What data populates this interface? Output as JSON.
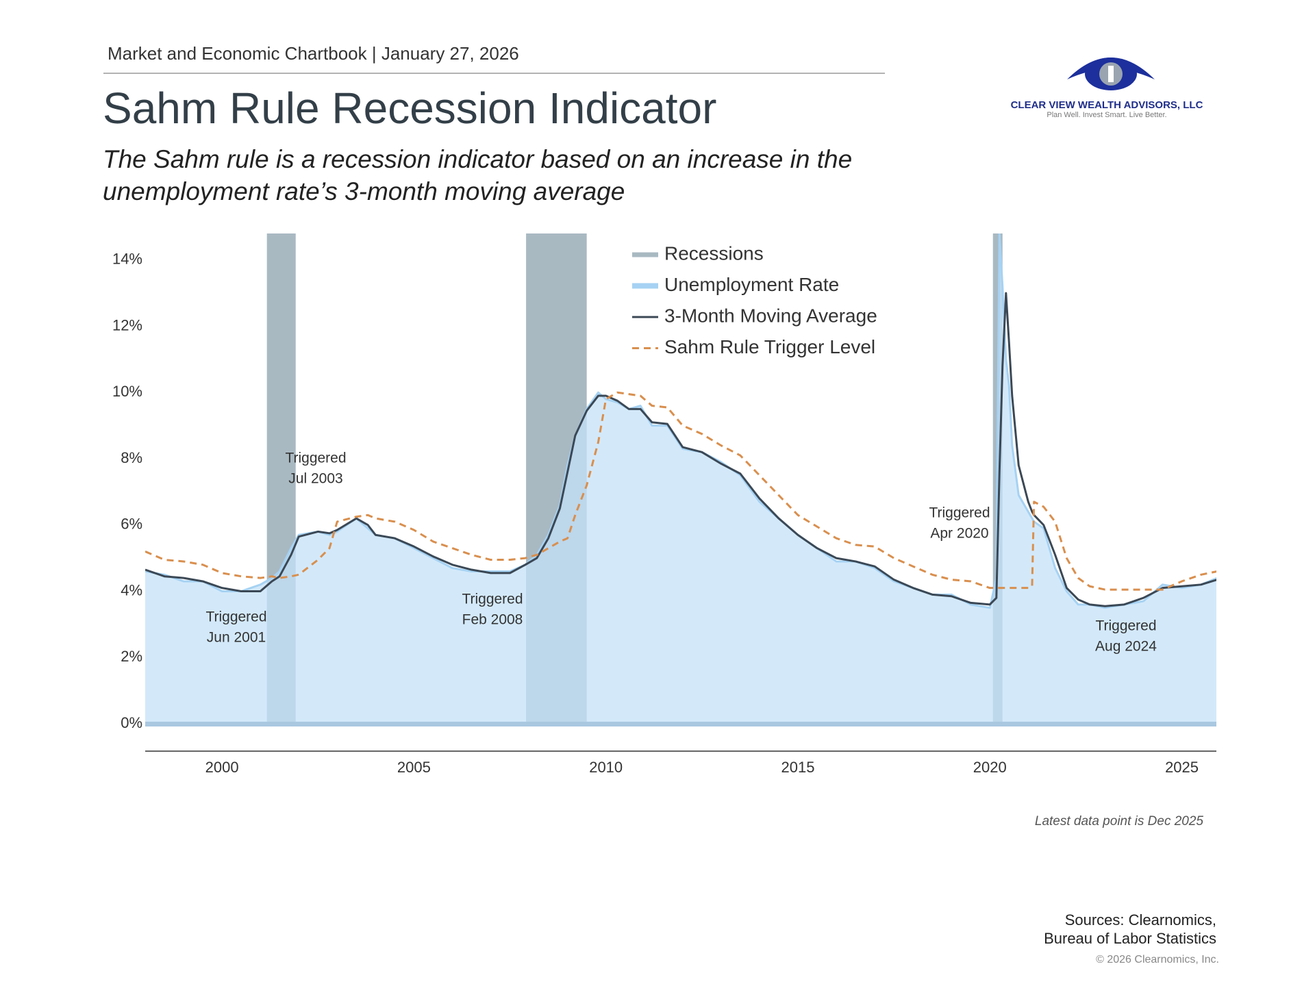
{
  "header": {
    "text": "Market and Economic Chartbook | January 27, 2026"
  },
  "logo": {
    "name": "CLEAR VIEW WEALTH ADVISORS, LLC",
    "tagline": "Plan Well. Invest Smart. Live Better."
  },
  "chart_data": {
    "type": "line",
    "title": "Sahm Rule Recession Indicator",
    "subtitle": [
      "The Sahm rule is a recession indicator based on an increase in the",
      "unemployment rate’s 3-month moving average"
    ],
    "xlim": [
      1998,
      2025.9
    ],
    "xticks": [
      2000,
      2005,
      2010,
      2015,
      2020,
      2025
    ],
    "ylim": [
      0,
      14.8
    ],
    "yticks": [
      {
        "value": 0,
        "label": "0%"
      },
      {
        "value": 2,
        "label": "2%"
      },
      {
        "value": 4,
        "label": "4%"
      },
      {
        "value": 6,
        "label": "6%"
      },
      {
        "value": 8,
        "label": "8%"
      },
      {
        "value": 10,
        "label": "10%"
      },
      {
        "value": 12,
        "label": "12%"
      },
      {
        "value": 14,
        "label": "14%"
      }
    ],
    "grid": false,
    "legend": "upper center",
    "recessions": {
      "name": "Recessions",
      "color": "#a9b9c2",
      "periods": [
        [
          2001.17,
          2001.92
        ],
        [
          2007.92,
          2009.5
        ],
        [
          2020.08,
          2020.33
        ]
      ]
    },
    "x": [
      1998.0,
      1998.5,
      1999.0,
      1999.5,
      2000.0,
      2000.5,
      2001.0,
      2001.3,
      2001.5,
      2001.8,
      2002.0,
      2002.5,
      2002.8,
      2003.0,
      2003.5,
      2003.8,
      2004.0,
      2004.5,
      2005.0,
      2005.5,
      2006.0,
      2006.5,
      2007.0,
      2007.5,
      2007.9,
      2008.2,
      2008.5,
      2008.8,
      2009.0,
      2009.2,
      2009.5,
      2009.8,
      2010.0,
      2010.3,
      2010.6,
      2010.9,
      2011.2,
      2011.6,
      2012.0,
      2012.5,
      2013.0,
      2013.5,
      2014.0,
      2014.5,
      2015.0,
      2015.5,
      2016.0,
      2016.5,
      2017.0,
      2017.5,
      2018.0,
      2018.5,
      2019.0,
      2019.5,
      2020.0,
      2020.17,
      2020.25,
      2020.33,
      2020.42,
      2020.5,
      2020.58,
      2020.75,
      2021.0,
      2021.1,
      2021.15,
      2021.4,
      2021.7,
      2022.0,
      2022.3,
      2022.6,
      2023.0,
      2023.5,
      2024.0,
      2024.5,
      2025.0,
      2025.5,
      2025.92
    ],
    "series": [
      {
        "name": "Unemployment Rate",
        "color": "#a6d2f3",
        "fill": "#c4e1f8",
        "values": [
          4.6,
          4.5,
          4.3,
          4.3,
          4.0,
          4.0,
          4.2,
          4.4,
          4.6,
          5.3,
          5.7,
          5.8,
          5.7,
          5.8,
          6.2,
          5.9,
          5.7,
          5.6,
          5.3,
          5.0,
          4.7,
          4.6,
          4.6,
          4.6,
          4.8,
          5.1,
          5.7,
          6.6,
          7.8,
          8.7,
          9.5,
          10.0,
          9.8,
          9.7,
          9.5,
          9.6,
          9.0,
          9.0,
          8.3,
          8.2,
          7.9,
          7.5,
          6.7,
          6.2,
          5.7,
          5.3,
          4.9,
          4.9,
          4.7,
          4.3,
          4.1,
          3.9,
          3.9,
          3.6,
          3.5,
          4.4,
          14.8,
          13.2,
          11.0,
          10.2,
          8.4,
          6.9,
          6.4,
          6.2,
          6.1,
          5.9,
          4.7,
          4.0,
          3.6,
          3.6,
          3.5,
          3.6,
          3.7,
          4.2,
          4.1,
          4.2,
          4.4
        ]
      },
      {
        "name": "3-Month Moving Average",
        "color": "#3b4855",
        "values": [
          4.65,
          4.45,
          4.4,
          4.3,
          4.1,
          4.0,
          4.0,
          4.3,
          4.45,
          5.1,
          5.65,
          5.8,
          5.75,
          5.85,
          6.2,
          6.0,
          5.7,
          5.6,
          5.35,
          5.05,
          4.8,
          4.65,
          4.55,
          4.55,
          4.8,
          5.0,
          5.6,
          6.5,
          7.6,
          8.7,
          9.45,
          9.9,
          9.9,
          9.75,
          9.5,
          9.5,
          9.1,
          9.05,
          8.35,
          8.2,
          7.85,
          7.55,
          6.8,
          6.2,
          5.7,
          5.3,
          5.0,
          4.9,
          4.75,
          4.35,
          4.1,
          3.9,
          3.85,
          3.65,
          3.6,
          3.8,
          7.6,
          10.8,
          13.0,
          11.5,
          9.9,
          7.8,
          6.7,
          6.4,
          6.3,
          6.0,
          5.1,
          4.1,
          3.75,
          3.6,
          3.55,
          3.6,
          3.8,
          4.1,
          4.15,
          4.2,
          4.35
        ]
      },
      {
        "name": "Sahm Rule Trigger Level",
        "color": "#d98f4e",
        "dashed": true,
        "values": [
          5.2,
          4.95,
          4.9,
          4.8,
          4.55,
          4.45,
          4.4,
          4.45,
          4.4,
          4.45,
          4.5,
          4.95,
          5.3,
          6.1,
          6.25,
          6.3,
          6.2,
          6.1,
          5.85,
          5.5,
          5.3,
          5.1,
          4.95,
          4.95,
          5.0,
          5.1,
          5.3,
          5.5,
          5.6,
          6.3,
          7.2,
          8.5,
          9.8,
          10.0,
          9.95,
          9.9,
          9.6,
          9.55,
          9.0,
          8.75,
          8.4,
          8.1,
          7.5,
          6.9,
          6.3,
          5.95,
          5.6,
          5.4,
          5.35,
          5.0,
          4.75,
          4.5,
          4.35,
          4.3,
          4.1,
          4.1,
          4.1,
          4.1,
          4.1,
          4.1,
          4.1,
          4.1,
          4.1,
          4.15,
          6.7,
          6.55,
          6.1,
          5.0,
          4.4,
          4.15,
          4.05,
          4.05,
          4.05,
          4.05,
          4.3,
          4.5,
          4.6
        ]
      }
    ],
    "annotations": [
      [
        "Triggered",
        "Jun 2001"
      ],
      [
        "Triggered",
        "Jul 2003"
      ],
      [
        "Triggered",
        "Feb 2008"
      ],
      [
        "Triggered",
        "Apr 2020"
      ],
      [
        "Triggered",
        "Aug 2024"
      ]
    ],
    "footnote": "Latest data point is Dec 2025"
  },
  "sources": [
    "Sources: Clearnomics,",
    "Bureau of Labor Statistics"
  ],
  "copyright": "© 2026 Clearnomics, Inc."
}
